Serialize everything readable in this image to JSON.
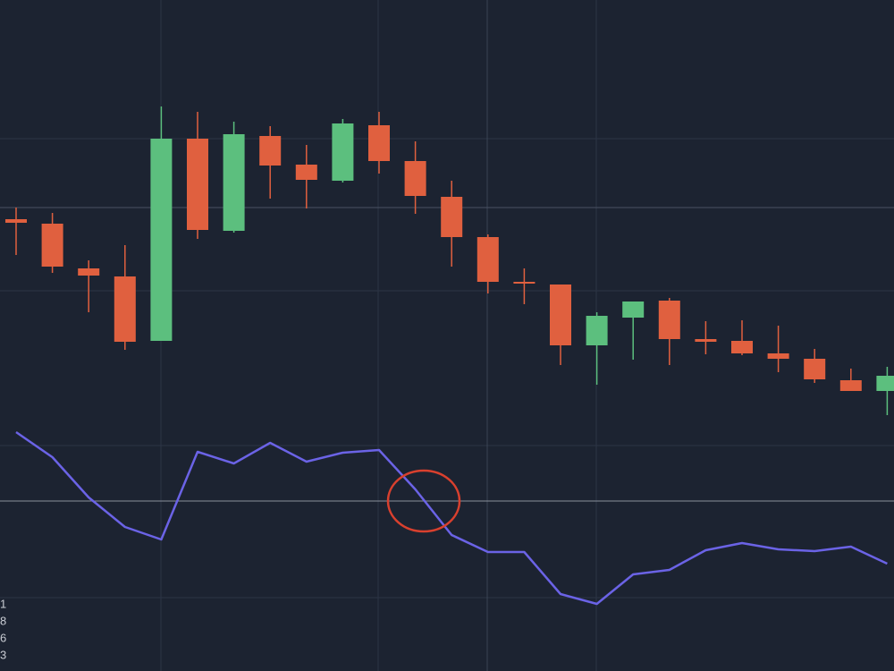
{
  "chart_data": [
    {
      "type": "candlestick",
      "categories": [
        null,
        null,
        null,
        null,
        null,
        null,
        null,
        null,
        null,
        null,
        null,
        null,
        null,
        null,
        null,
        null,
        null,
        null,
        null,
        null,
        null,
        null,
        null,
        null,
        null
      ],
      "open": [
        225,
        220,
        170,
        161,
        89,
        315,
        212,
        318,
        286,
        268,
        330,
        290,
        250,
        205,
        155,
        152,
        84,
        115,
        134,
        91,
        89,
        75,
        69,
        45,
        33
      ],
      "high": [
        238,
        232,
        179,
        196,
        351,
        345,
        334,
        329,
        308,
        337,
        345,
        312,
        268,
        208,
        170,
        152,
        121,
        133,
        137,
        111,
        112,
        106,
        80,
        58,
        60
      ],
      "low": [
        185,
        165,
        121,
        79,
        89,
        203,
        210,
        248,
        237,
        266,
        276,
        231,
        172,
        142,
        130,
        62,
        40,
        68,
        62,
        74,
        73,
        54,
        42,
        33,
        6
      ],
      "close": [
        221,
        172,
        162,
        88,
        315,
        213,
        320,
        285,
        269,
        332,
        290,
        251,
        205,
        155,
        153,
        84,
        117,
        133,
        91,
        88,
        75,
        69,
        46,
        33,
        50
      ],
      "up_color": "#5cbf7e",
      "down_color": "#e0603f",
      "ylim": [
        0,
        470
      ],
      "reference_line": 238
    },
    {
      "type": "line",
      "categories": [
        null,
        null,
        null,
        null,
        null,
        null,
        null,
        null,
        null,
        null,
        null,
        null,
        null,
        null,
        null,
        null,
        null,
        null,
        null,
        null,
        null,
        null,
        null,
        null,
        null
      ],
      "values": [
        267,
        239,
        194,
        161,
        147,
        245,
        232,
        255,
        234,
        244,
        247,
        203,
        152,
        133,
        133,
        86,
        75,
        108,
        113,
        135,
        143,
        136,
        134,
        139,
        120
      ],
      "color": "#6b63e6",
      "ylim": [
        0,
        280
      ],
      "reference_line": 190,
      "annotations": [
        "1",
        "8",
        "6",
        "3"
      ]
    }
  ]
}
